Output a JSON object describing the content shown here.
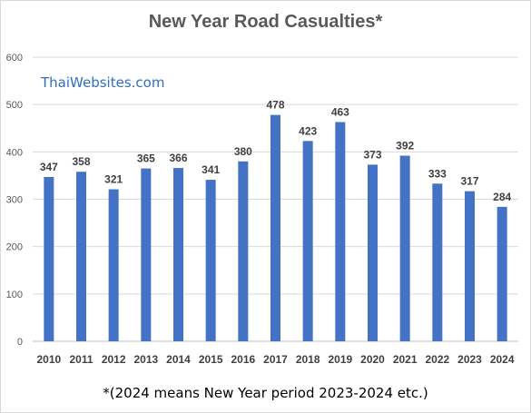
{
  "chart_data": {
    "type": "bar",
    "title": "New Year Road Casualties*",
    "categories": [
      "2010",
      "2011",
      "2012",
      "2013",
      "2014",
      "2015",
      "2016",
      "2017",
      "2018",
      "2019",
      "2020",
      "2021",
      "2022",
      "2023",
      "2024"
    ],
    "values": [
      347,
      358,
      321,
      365,
      366,
      341,
      380,
      478,
      423,
      463,
      373,
      392,
      333,
      317,
      284
    ],
    "ylim": [
      0,
      600
    ],
    "yticks": [
      0,
      100,
      200,
      300,
      400,
      500,
      600
    ],
    "grid": true,
    "bar_color": "#4472c4",
    "data_labels": true
  },
  "watermark": "ThaiWebsites.com",
  "footnote": "*(2024 means New Year period 2023-2024 etc.)"
}
